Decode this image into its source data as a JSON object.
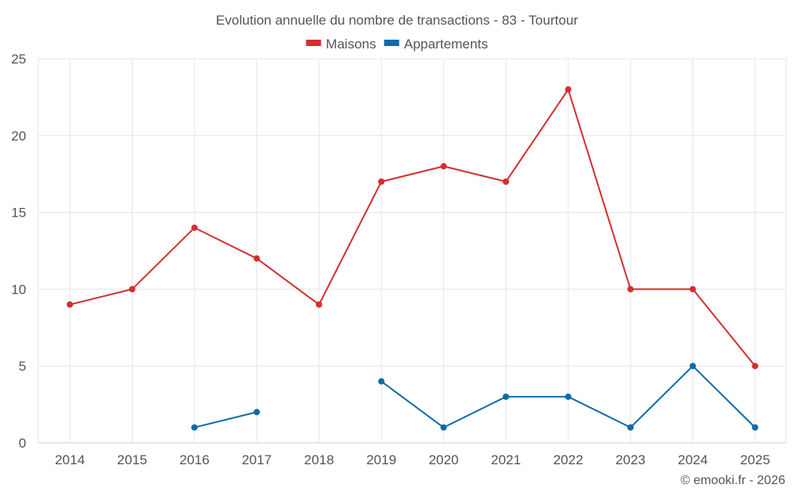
{
  "chart_data": {
    "type": "line",
    "title": "Evolution annuelle du nombre de transactions - 83 - Tourtour",
    "categories": [
      "2014",
      "2015",
      "2016",
      "2017",
      "2018",
      "2019",
      "2020",
      "2021",
      "2022",
      "2023",
      "2024",
      "2025"
    ],
    "series": [
      {
        "name": "Maisons",
        "color": "#d32f2f",
        "values": [
          9,
          10,
          14,
          12,
          9,
          17,
          18,
          17,
          23,
          10,
          10,
          5
        ]
      },
      {
        "name": "Appartements",
        "color": "#0f6ba8",
        "values": [
          null,
          null,
          1,
          2,
          null,
          4,
          1,
          3,
          3,
          1,
          5,
          1
        ]
      }
    ],
    "ylim": [
      0,
      25
    ],
    "yticks": [
      0,
      5,
      10,
      15,
      20,
      25
    ],
    "grid": true,
    "legend_position": "top-center",
    "xlabel": "",
    "ylabel": ""
  },
  "footer": {
    "copyright": "© emooki.fr - 2026"
  }
}
